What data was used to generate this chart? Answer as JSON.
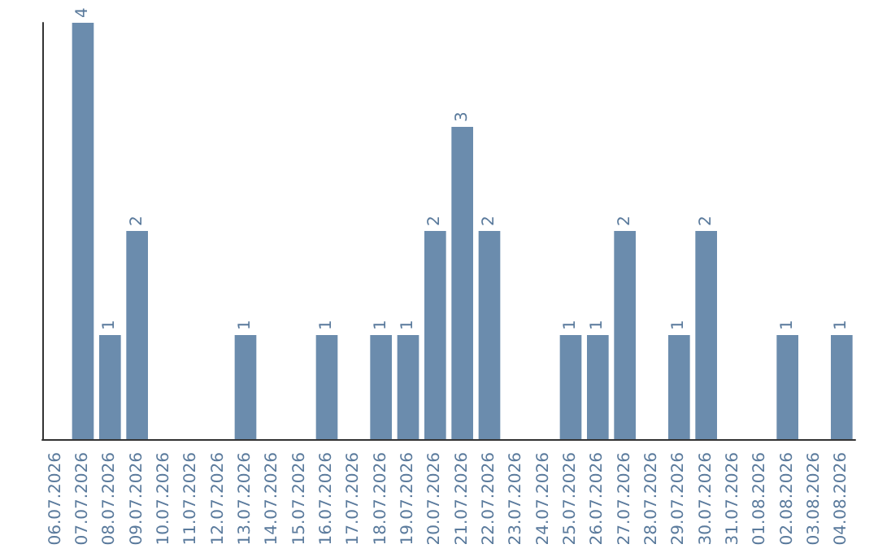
{
  "chart_data": {
    "type": "bar",
    "categories": [
      "06.07.2026",
      "07.07.2026",
      "08.07.2026",
      "09.07.2026",
      "10.07.2026",
      "11.07.2026",
      "12.07.2026",
      "13.07.2026",
      "14.07.2026",
      "15.07.2026",
      "16.07.2026",
      "17.07.2026",
      "18.07.2026",
      "19.07.2026",
      "20.07.2026",
      "21.07.2026",
      "22.07.2026",
      "23.07.2026",
      "24.07.2026",
      "25.07.2026",
      "26.07.2026",
      "27.07.2026",
      "28.07.2026",
      "29.07.2026",
      "30.07.2026",
      "31.07.2026",
      "01.08.2026",
      "02.08.2026",
      "03.08.2026",
      "04.08.2026"
    ],
    "values": [
      0,
      4,
      1,
      2,
      0,
      0,
      0,
      1,
      0,
      0,
      1,
      0,
      1,
      1,
      2,
      3,
      2,
      0,
      0,
      1,
      1,
      2,
      0,
      1,
      2,
      0,
      0,
      1,
      0,
      1
    ],
    "value_labels": [
      null,
      "4",
      "1",
      "2",
      null,
      null,
      null,
      "1",
      null,
      null,
      "1",
      null,
      "1",
      "1",
      "2",
      "3",
      "2",
      null,
      null,
      "1",
      "1",
      "2",
      null,
      "1",
      "2",
      null,
      null,
      "1",
      null,
      "1"
    ],
    "color": "#6b8cad",
    "tick_labels": "x"
  }
}
